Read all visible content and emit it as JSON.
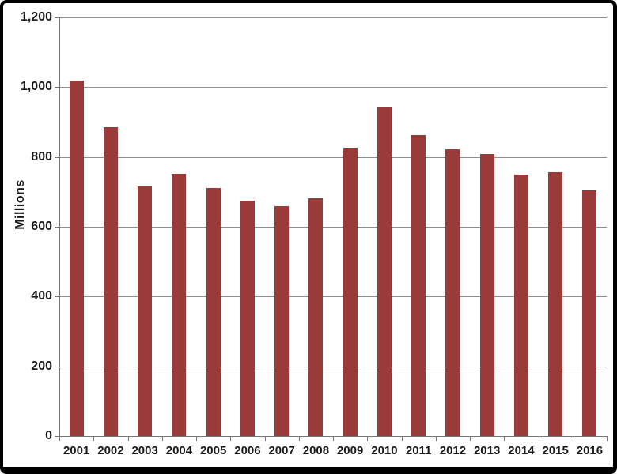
{
  "chart_data": {
    "type": "bar",
    "title": "",
    "categories": [
      "2001",
      "2002",
      "2003",
      "2004",
      "2005",
      "2006",
      "2007",
      "2008",
      "2009",
      "2010",
      "2011",
      "2012",
      "2013",
      "2014",
      "2015",
      "2016"
    ],
    "values": [
      1020,
      885,
      716,
      752,
      712,
      674,
      659,
      681,
      827,
      941,
      863,
      822,
      809,
      750,
      756,
      705
    ],
    "xlabel": "",
    "ylabel": "Millions",
    "ylim": [
      0,
      1200
    ],
    "y_ticks": [
      0,
      200,
      400,
      600,
      800,
      1000,
      1200
    ],
    "y_tick_labels": [
      "0",
      "200",
      "400",
      "600",
      "800",
      "1,000",
      "1,200"
    ],
    "grid": true,
    "legend": false,
    "colors": {
      "bar": "#9b3b39",
      "gridline": "#8f8f8f",
      "axis": "#767676",
      "text": "#1a1a1a",
      "frame": "#000000",
      "background": "#ffffff"
    }
  }
}
